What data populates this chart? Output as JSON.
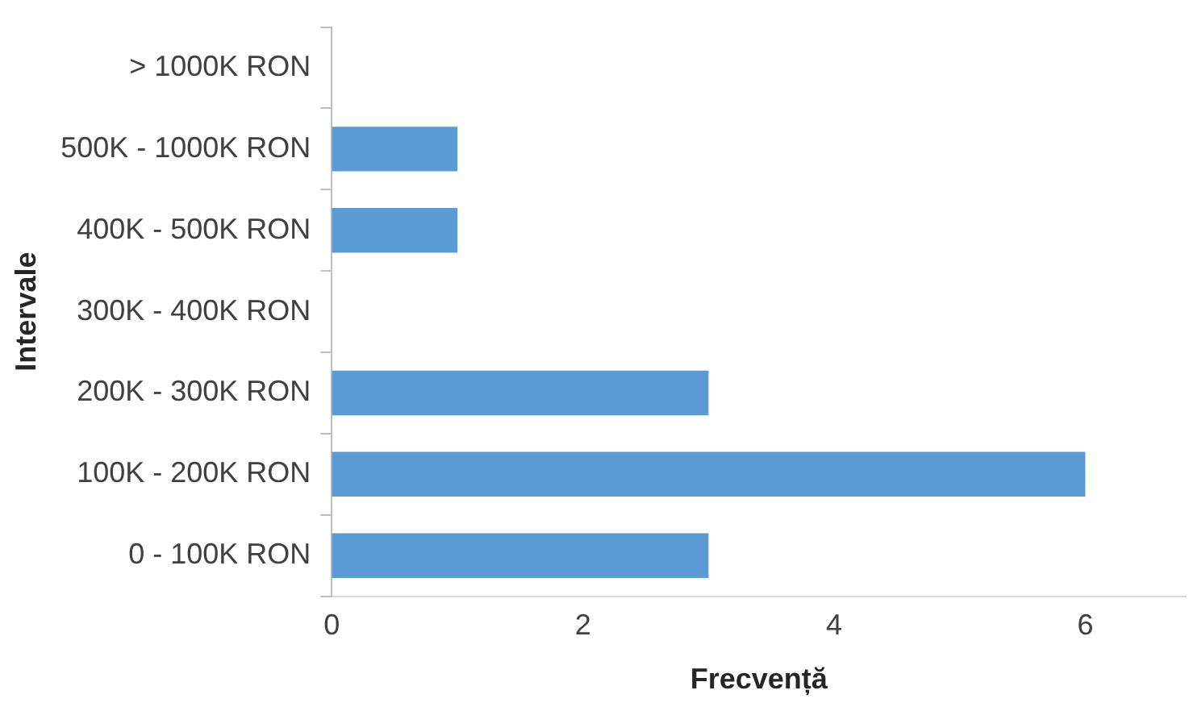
{
  "chart_data": {
    "type": "bar",
    "orientation": "horizontal",
    "xlabel": "Frecvență",
    "ylabel": "Intervale",
    "categories": [
      "> 1000K RON",
      "500K - 1000K RON",
      "400K - 500K RON",
      "300K - 400K RON",
      "200K - 300K RON",
      "100K - 200K RON",
      "0 - 100K RON"
    ],
    "values": [
      0,
      1,
      1,
      0,
      3,
      6,
      3
    ],
    "color": "#5b9bd5",
    "xlim": [
      0,
      6.8
    ],
    "xticks": [
      0,
      2,
      4,
      6
    ],
    "grid": false,
    "legend": false
  }
}
